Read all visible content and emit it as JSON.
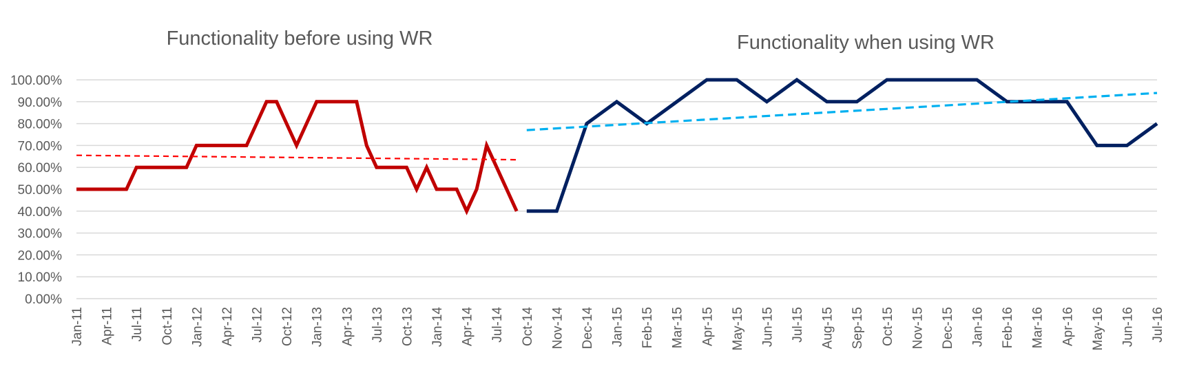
{
  "chart_data": {
    "type": "line",
    "titles": [
      "Functionality before using WR",
      "Functionality when using WR"
    ],
    "ylim": [
      0,
      1
    ],
    "y_ticks": [
      "0.00%",
      "10.00%",
      "20.00%",
      "30.00%",
      "40.00%",
      "50.00%",
      "60.00%",
      "70.00%",
      "80.00%",
      "90.00%",
      "100.00%"
    ],
    "x_tick_labels": [
      "Jan-11",
      "Apr-11",
      "Jul-11",
      "Oct-11",
      "Jan-12",
      "Apr-12",
      "Jul-12",
      "Oct-12",
      "Jan-13",
      "Apr-13",
      "Jul-13",
      "Oct-13",
      "Jan-14",
      "Apr-14",
      "Jul-14",
      "Oct-14",
      "Nov-14",
      "Dec-14",
      "Jan-15",
      "Feb-15",
      "Mar-15",
      "Apr-15",
      "May-15",
      "Jun-15",
      "Jul-15",
      "Aug-15",
      "Sep-15",
      "Oct-15",
      "Nov-15",
      "Dec-15",
      "Jan-16",
      "Feb-16",
      "Mar-16",
      "Apr-16",
      "May-16",
      "Jun-16",
      "Jul-16"
    ],
    "grid": true,
    "colors": {
      "before": "#c00000",
      "before_trend": "#ff0000",
      "after": "#002060",
      "after_trend": "#00b0f0",
      "text": "#595959",
      "grid": "#d9d9d9"
    },
    "series": [
      {
        "x": [
          "Jan-11",
          "Feb-11",
          "Mar-11",
          "Apr-11",
          "May-11",
          "Jun-11",
          "Jul-11",
          "Aug-11",
          "Sep-11",
          "Oct-11",
          "Nov-11",
          "Dec-11",
          "Jan-12",
          "Feb-12",
          "Mar-12",
          "Apr-12",
          "May-12",
          "Jun-12",
          "Jul-12",
          "Aug-12",
          "Sep-12",
          "Oct-12",
          "Nov-12",
          "Dec-12",
          "Jan-13",
          "Feb-13",
          "Mar-13",
          "Apr-13",
          "May-13",
          "Jun-13",
          "Jul-13",
          "Aug-13",
          "Sep-13",
          "Oct-13",
          "Nov-13",
          "Dec-13",
          "Jan-14",
          "Feb-14",
          "Mar-14",
          "Apr-14",
          "May-14",
          "Jun-14",
          "Jul-14",
          "Aug-14",
          "Sep-14"
        ],
        "values": [
          0.5,
          0.5,
          0.5,
          0.5,
          0.5,
          0.5,
          0.6,
          0.6,
          0.6,
          0.6,
          0.6,
          0.6,
          0.7,
          0.7,
          0.7,
          0.7,
          0.7,
          0.7,
          0.8,
          0.9,
          0.9,
          0.8,
          0.7,
          0.8,
          0.9,
          0.9,
          0.9,
          0.9,
          0.9,
          0.7,
          0.6,
          0.6,
          0.6,
          0.6,
          0.5,
          0.6,
          0.5,
          0.5,
          0.5,
          0.4,
          0.5,
          0.7,
          0.6,
          0.5,
          0.4
        ]
      },
      {
        "x": [
          "Jan-11",
          "Sep-14"
        ],
        "values": [
          0.655,
          0.635
        ],
        "trendline": true
      },
      {
        "x": [
          "Oct-14",
          "Nov-14",
          "Dec-14",
          "Jan-15",
          "Feb-15",
          "Mar-15",
          "Apr-15",
          "May-15",
          "Jun-15",
          "Jul-15",
          "Aug-15",
          "Sep-15",
          "Oct-15",
          "Nov-15",
          "Dec-15",
          "Jan-16",
          "Feb-16",
          "Mar-16",
          "Apr-16",
          "May-16",
          "Jun-16",
          "Jul-16"
        ],
        "values": [
          0.4,
          0.4,
          0.8,
          0.9,
          0.8,
          0.9,
          1.0,
          1.0,
          0.9,
          1.0,
          0.9,
          0.9,
          1.0,
          1.0,
          1.0,
          1.0,
          0.9,
          0.9,
          0.9,
          0.7,
          0.7,
          0.8
        ]
      },
      {
        "x": [
          "Oct-14",
          "Jul-16"
        ],
        "values": [
          0.77,
          0.94
        ],
        "trendline": true
      }
    ]
  }
}
